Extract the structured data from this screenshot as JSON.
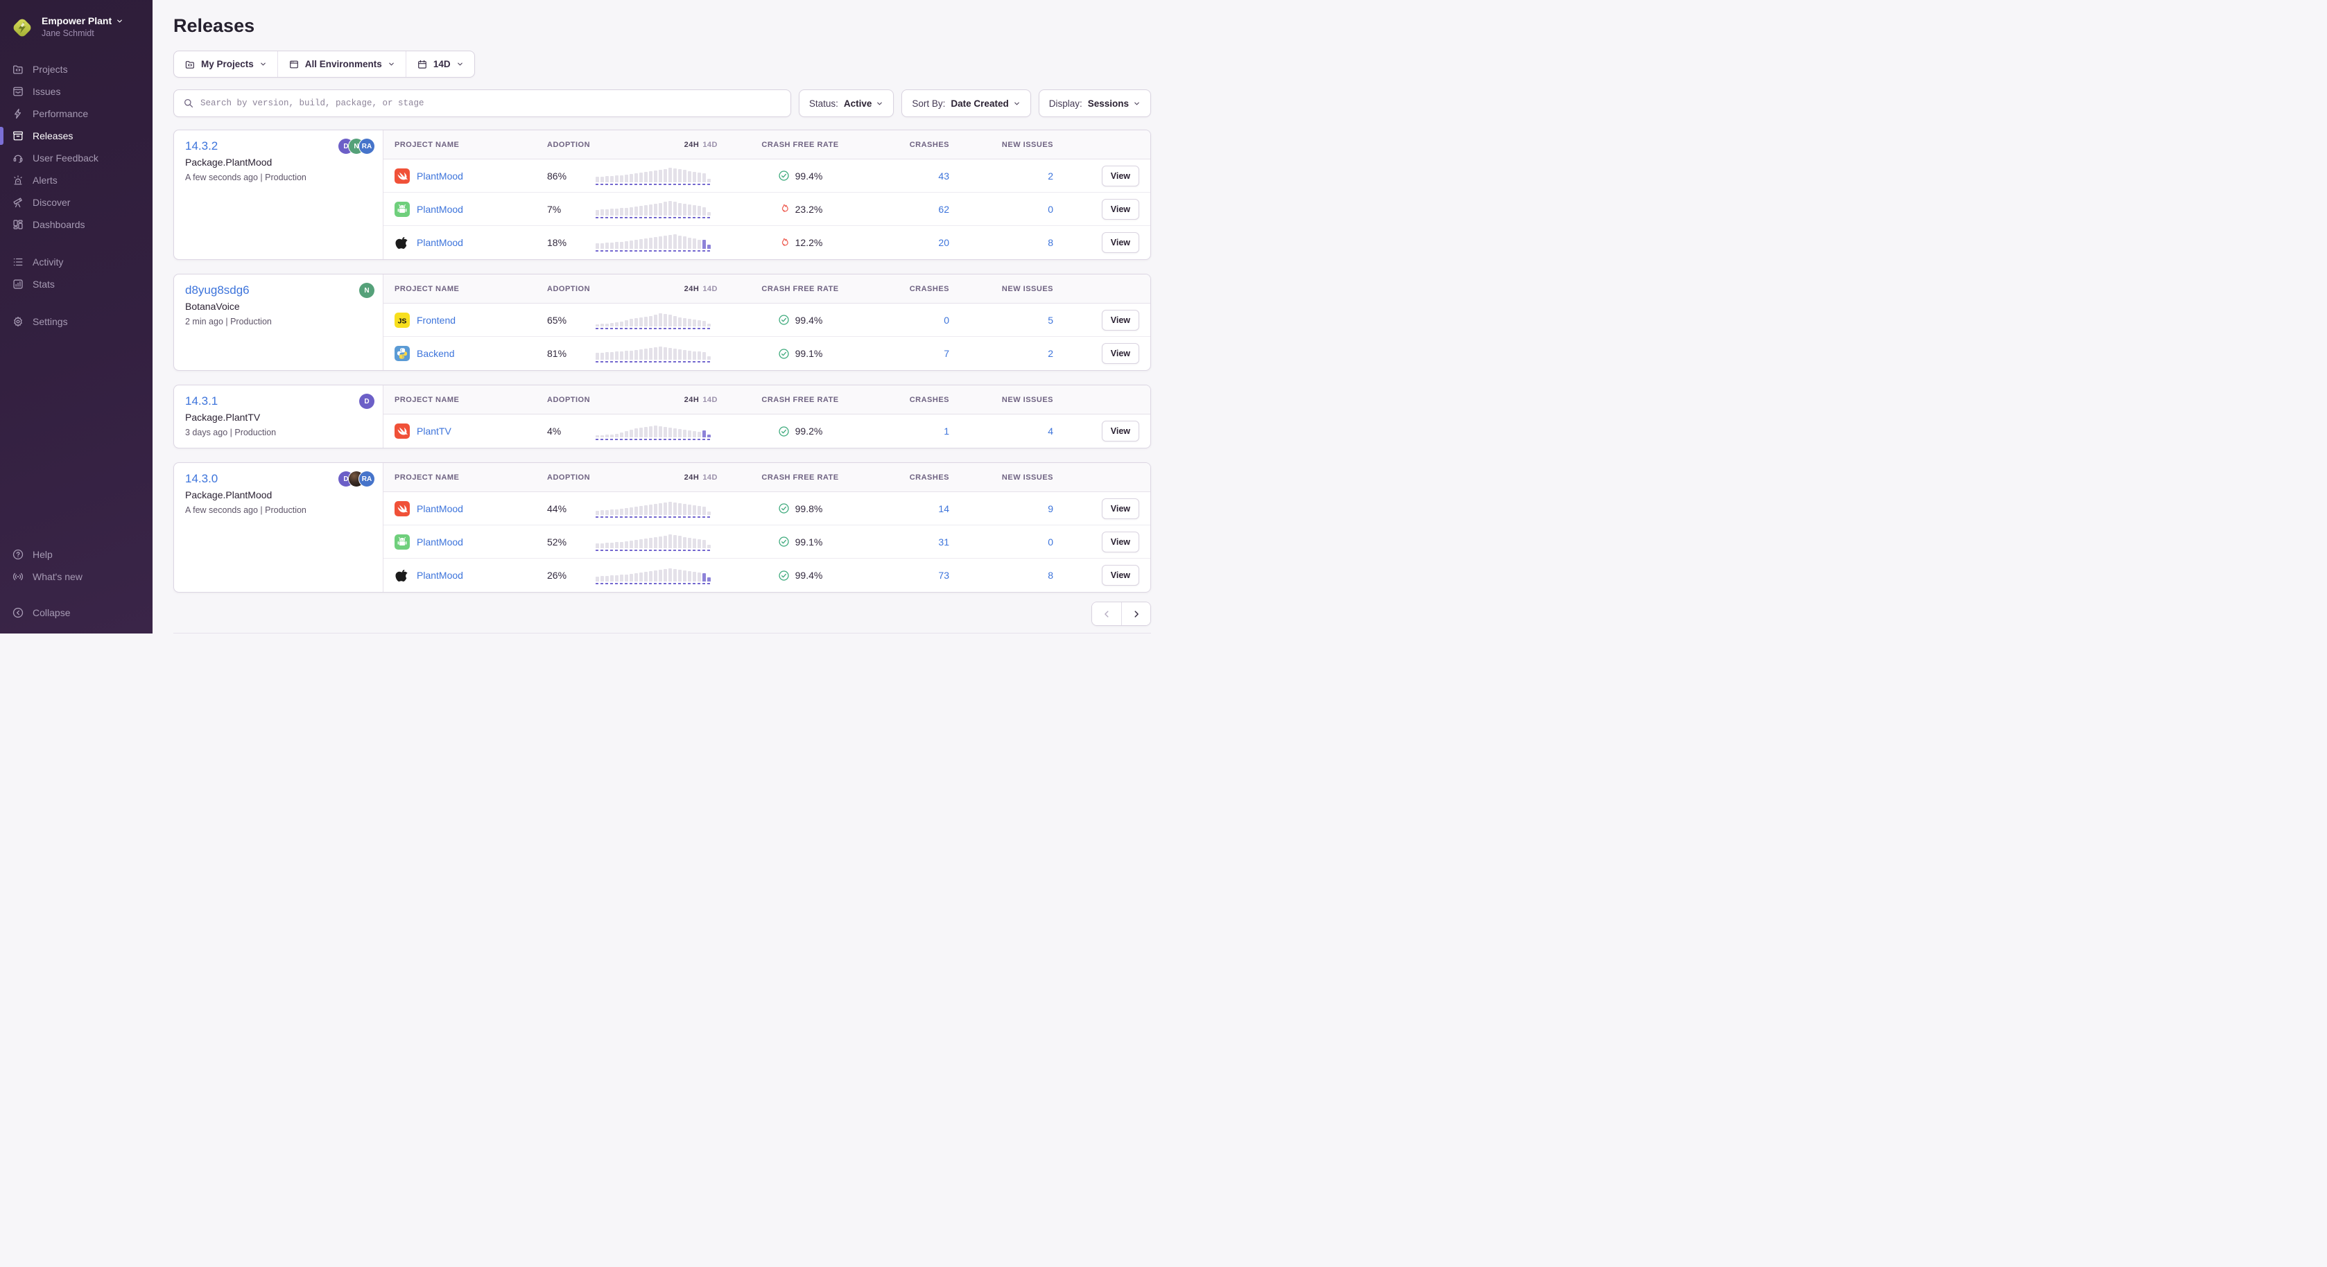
{
  "colors": {
    "sidebar_bg": "#2e1d39",
    "accent_purple": "#7c70d6",
    "link_blue": "#3d74db",
    "success_green": "#3ca97b",
    "danger_red": "#ee6055",
    "bar_gray": "#e4e1e9",
    "bar_purple": "#8d83d8",
    "card_border": "#dcd6e3",
    "logo_green": "#c3cc44"
  },
  "sidebar": {
    "org_name": "Empower Plant",
    "user_name": "Jane Schmidt",
    "sections": [
      {
        "items": [
          {
            "icon": "projects",
            "label": "Projects"
          },
          {
            "icon": "issues",
            "label": "Issues"
          },
          {
            "icon": "performance",
            "label": "Performance"
          },
          {
            "icon": "releases",
            "label": "Releases",
            "active": true
          },
          {
            "icon": "user-feedback",
            "label": "User Feedback"
          },
          {
            "icon": "alerts",
            "label": "Alerts"
          },
          {
            "icon": "discover",
            "label": "Discover"
          },
          {
            "icon": "dashboards",
            "label": "Dashboards"
          }
        ]
      },
      {
        "items": [
          {
            "icon": "activity",
            "label": "Activity"
          },
          {
            "icon": "stats",
            "label": "Stats"
          }
        ]
      },
      {
        "items": [
          {
            "icon": "settings",
            "label": "Settings"
          }
        ]
      }
    ],
    "footer_items": [
      {
        "icon": "help",
        "label": "Help"
      },
      {
        "icon": "whats-new",
        "label": "What's new"
      }
    ],
    "collapse_label": "Collapse"
  },
  "header": {
    "title": "Releases"
  },
  "filter_segments": [
    {
      "icon": "projects",
      "label": "My Projects"
    },
    {
      "icon": "window",
      "label": "All Environments"
    },
    {
      "icon": "calendar",
      "label": "14D"
    }
  ],
  "search": {
    "placeholder": "Search by version, build, package, or stage"
  },
  "dropdowns": [
    {
      "id": "status",
      "label": "Status:",
      "value": "Active"
    },
    {
      "id": "sort-by",
      "label": "Sort By:",
      "value": "Date Created"
    },
    {
      "id": "display",
      "label": "Display:",
      "value": "Sessions"
    }
  ],
  "table_columns": {
    "project": "PROJECT NAME",
    "adoption": "ADOPTION",
    "h24": "24H",
    "d14": "14D",
    "crash_free": "CRASH FREE RATE",
    "crashes": "CRASHES",
    "new_issues": "NEW ISSUES"
  },
  "view_label": "View",
  "releases": [
    {
      "version": "14.3.2",
      "package": "Package.PlantMood",
      "meta": "A few seconds ago | Production",
      "avatars": [
        {
          "kind": "letter",
          "text": "D",
          "bg": "#6C5FC7"
        },
        {
          "kind": "letter",
          "text": "N",
          "bg": "#55A179"
        },
        {
          "kind": "letter",
          "text": "RA",
          "bg": "#4674CA"
        }
      ],
      "rows": [
        {
          "platform": "swift",
          "project": "PlantMood",
          "adoption": "86%",
          "status": "good",
          "crash_free": "99.4%",
          "crashes": "43",
          "new_issues": "2",
          "spark": [
            8,
            8,
            9,
            9,
            10,
            10,
            11,
            12,
            13,
            14,
            15,
            16,
            17,
            18,
            19,
            21,
            20,
            19,
            18,
            16,
            15,
            14,
            13,
            5
          ],
          "spark_purple": []
        },
        {
          "platform": "android",
          "project": "PlantMood",
          "adoption": "7%",
          "status": "bad",
          "crash_free": "23.2%",
          "crashes": "62",
          "new_issues": "0",
          "spark": [
            8,
            9,
            9,
            10,
            10,
            11,
            11,
            12,
            13,
            14,
            15,
            16,
            17,
            18,
            20,
            21,
            20,
            18,
            17,
            16,
            15,
            14,
            12,
            5
          ],
          "spark_purple": []
        },
        {
          "platform": "apple",
          "project": "PlantMood",
          "adoption": "18%",
          "status": "bad",
          "crash_free": "12.2%",
          "crashes": "20",
          "new_issues": "8",
          "spark": [
            8,
            8,
            9,
            9,
            10,
            10,
            11,
            12,
            13,
            14,
            15,
            16,
            17,
            18,
            19,
            20,
            21,
            19,
            18,
            16,
            15,
            13,
            13,
            6
          ],
          "spark_purple": [
            22,
            23
          ]
        }
      ]
    },
    {
      "version": "d8yug8sdg6",
      "package": "BotanaVoice",
      "meta": "2 min ago | Production",
      "avatars": [
        {
          "kind": "letter",
          "text": "N",
          "bg": "#55A179"
        }
      ],
      "rows": [
        {
          "platform": "javascript",
          "project": "Frontend",
          "adoption": "65%",
          "status": "good",
          "crash_free": "99.4%",
          "crashes": "0",
          "new_issues": "5",
          "spark": [
            3,
            4,
            4,
            5,
            6,
            7,
            9,
            11,
            12,
            13,
            14,
            15,
            17,
            19,
            18,
            17,
            15,
            13,
            12,
            11,
            10,
            9,
            8,
            4
          ],
          "spark_purple": []
        },
        {
          "platform": "python",
          "project": "Backend",
          "adoption": "81%",
          "status": "good",
          "crash_free": "99.1%",
          "crashes": "7",
          "new_issues": "2",
          "spark": [
            10,
            10,
            11,
            11,
            12,
            12,
            13,
            13,
            14,
            15,
            16,
            17,
            18,
            19,
            18,
            17,
            16,
            15,
            14,
            13,
            12,
            12,
            11,
            5
          ],
          "spark_purple": []
        }
      ]
    },
    {
      "version": "14.3.1",
      "package": "Package.PlantTV",
      "meta": "3 days ago | Production",
      "avatars": [
        {
          "kind": "letter",
          "text": "D",
          "bg": "#6C5FC7"
        }
      ],
      "rows": [
        {
          "platform": "swift",
          "project": "PlantTV",
          "adoption": "4%",
          "status": "good",
          "crash_free": "99.2%",
          "crashes": "1",
          "new_issues": "4",
          "spark": [
            3,
            3,
            4,
            4,
            5,
            7,
            9,
            11,
            13,
            14,
            15,
            16,
            17,
            16,
            15,
            14,
            13,
            12,
            11,
            10,
            9,
            8,
            10,
            4
          ],
          "spark_purple": [
            22,
            23
          ]
        }
      ]
    },
    {
      "version": "14.3.0",
      "package": "Package.PlantMood",
      "meta": "A few seconds ago | Production",
      "avatars": [
        {
          "kind": "letter",
          "text": "D",
          "bg": "#6C5FC7"
        },
        {
          "kind": "photo",
          "text": ""
        },
        {
          "kind": "letter",
          "text": "RA",
          "bg": "#4674CA"
        }
      ],
      "rows": [
        {
          "platform": "swift",
          "project": "PlantMood",
          "adoption": "44%",
          "status": "good",
          "crash_free": "99.8%",
          "crashes": "14",
          "new_issues": "9",
          "spark": [
            6,
            7,
            7,
            8,
            8,
            9,
            10,
            11,
            12,
            13,
            14,
            15,
            16,
            17,
            18,
            19,
            18,
            17,
            16,
            15,
            14,
            13,
            12,
            5
          ],
          "spark_purple": []
        },
        {
          "platform": "android",
          "project": "PlantMood",
          "adoption": "52%",
          "status": "good",
          "crash_free": "99.1%",
          "crashes": "31",
          "new_issues": "0",
          "spark": [
            7,
            7,
            8,
            8,
            9,
            9,
            10,
            11,
            12,
            13,
            14,
            15,
            16,
            17,
            18,
            20,
            19,
            18,
            16,
            15,
            14,
            13,
            12,
            5
          ],
          "spark_purple": []
        },
        {
          "platform": "apple",
          "project": "PlantMood",
          "adoption": "26%",
          "status": "good",
          "crash_free": "99.4%",
          "crashes": "73",
          "new_issues": "8",
          "spark": [
            7,
            8,
            8,
            9,
            9,
            10,
            10,
            11,
            12,
            13,
            14,
            15,
            16,
            17,
            18,
            19,
            18,
            17,
            16,
            15,
            14,
            13,
            12,
            6
          ],
          "spark_purple": [
            22,
            23
          ]
        }
      ]
    }
  ],
  "pagination": {
    "prev_enabled": false,
    "next_enabled": true
  }
}
